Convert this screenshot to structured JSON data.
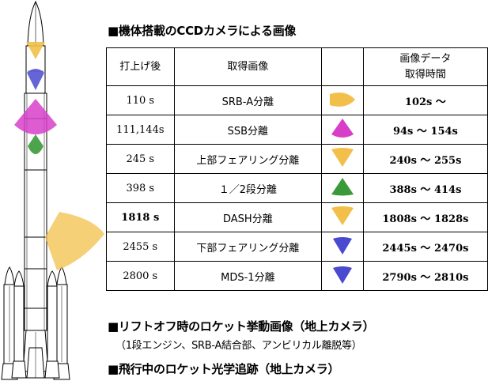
{
  "heading_ccd": "■機体搭載のCCDカメラによる画像",
  "table": {
    "headers": {
      "time_after_launch": "打上げ後",
      "image": "取得画像",
      "icon": "",
      "acq_line1": "画像データ",
      "acq_line2": "取得時間"
    },
    "rows": [
      {
        "event_time": "110 s",
        "image": "SRB-A分離",
        "icon": "yellow-fan-icon",
        "icon_color": "#f2c04a",
        "window": "102s ～"
      },
      {
        "event_time": "111,144s",
        "image": "SSB分離",
        "icon": "magenta-fan-icon",
        "icon_color": "#d83fc9",
        "window": "94s ～ 154s"
      },
      {
        "event_time": "245 s",
        "image": "上部フェアリング分離",
        "icon": "yellow-fan-icon",
        "icon_color": "#f2c04a",
        "window": "240s ～ 255s"
      },
      {
        "event_time": "398 s",
        "image": "１／2段分離",
        "icon": "green-fan-icon",
        "icon_color": "#3a9a3a",
        "window": "388s ～ 414s"
      },
      {
        "event_time": "1818 s",
        "image": "DASH分離",
        "icon": "yellow-fan-icon",
        "icon_color": "#f2c04a",
        "window": "1808s ～ 1828s"
      },
      {
        "event_time": "2455 s",
        "image": "下部フェアリング分離",
        "icon": "blue-fan-icon",
        "icon_color": "#4a4ad0",
        "window": "2445s ～ 2470s"
      },
      {
        "event_time": "2800 s",
        "image": "MDS-1分離",
        "icon": "blue-fan-icon",
        "icon_color": "#4a4ad0",
        "window": "2790s ～ 2810s"
      }
    ]
  },
  "heading_liftoff": "■リフトオフ時のロケット挙動画像（地上カメラ）",
  "liftoff_note": "（1段エンジン、SRB-A結合部、アンビリカル離脱等）",
  "heading_tracking": "■飛行中のロケット光学追跡（地上カメラ）",
  "rocket_fov_colors": {
    "yellow": "#f2c04a",
    "blue": "#4a4ad0",
    "magenta": "#d83fc9",
    "green": "#3a9a3a"
  }
}
